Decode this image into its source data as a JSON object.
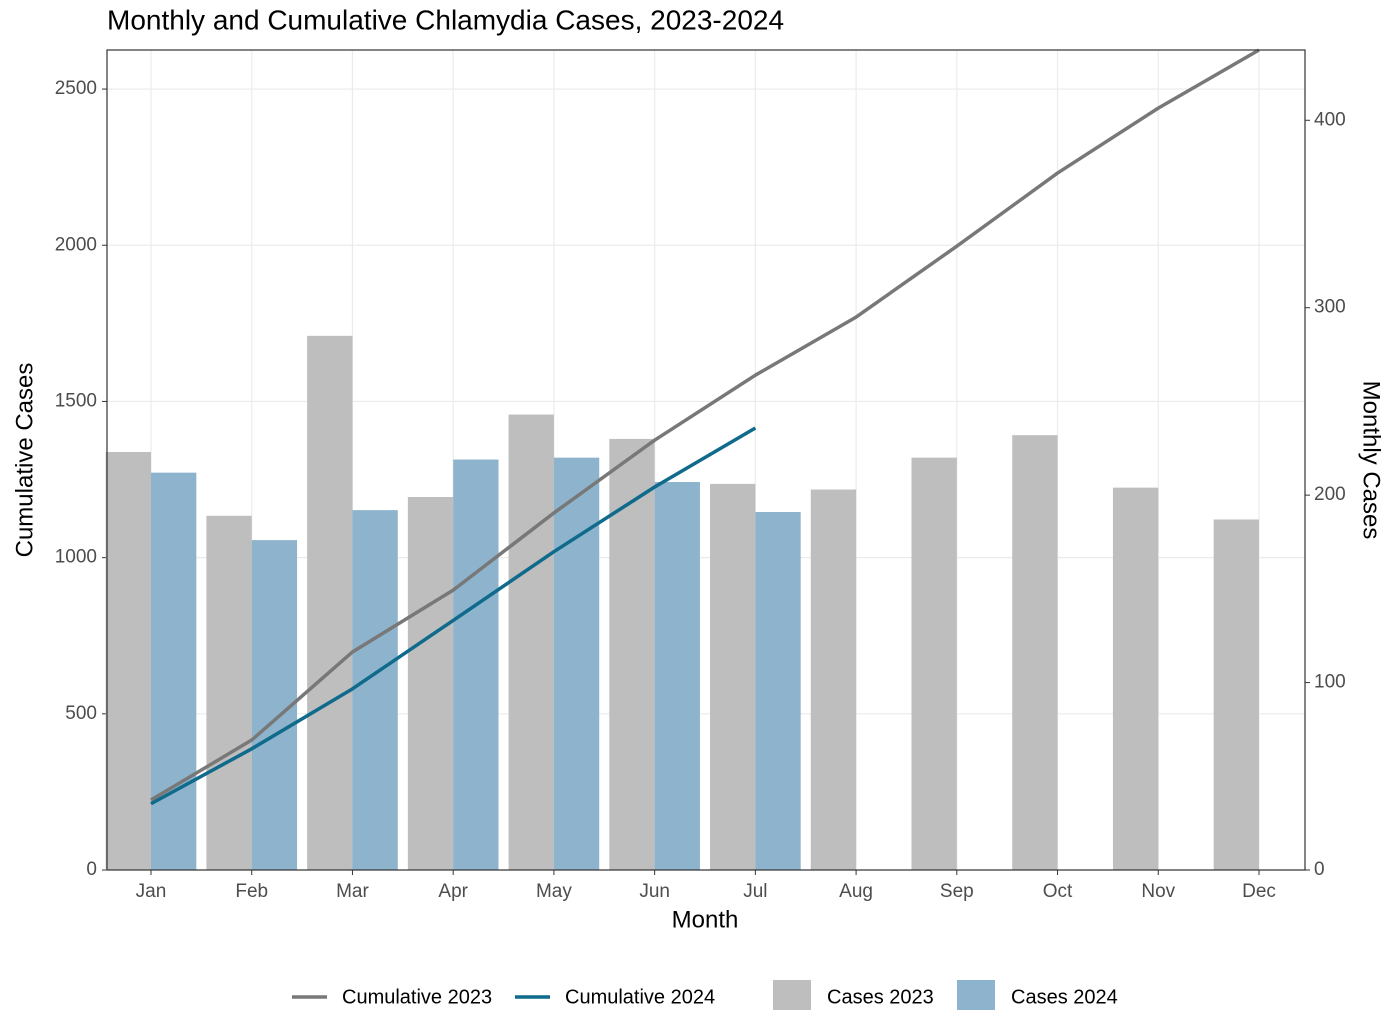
{
  "chart_data": {
    "type": "bar",
    "title": "Monthly and Cumulative Chlamydia Cases, 2023-2024",
    "x_label": "Month",
    "y_label": "Cumulative Cases",
    "y2_label": "Monthly Cases",
    "categories": [
      "Jan",
      "Feb",
      "Mar",
      "Apr",
      "May",
      "Jun",
      "Jul",
      "Aug",
      "Sep",
      "Oct",
      "Nov",
      "Dec"
    ],
    "series": [
      {
        "name": "Cumulative 2023",
        "kind": "line",
        "color": "#787878",
        "values": [
          224,
          416,
          698,
          896,
          1143,
          1376,
          1584,
          1770,
          1997,
          2231,
          2439,
          2625
        ]
      },
      {
        "name": "Cumulative 2024",
        "kind": "line",
        "color": "#0f6a8b",
        "values": [
          212,
          388,
          580,
          799,
          1019,
          1226,
          1415,
          null,
          null,
          null,
          null,
          null
        ]
      },
      {
        "name": "Cases 2023",
        "kind": "bar",
        "axis": "y2",
        "color": "#bebebe",
        "values": [
          223,
          189,
          285,
          199,
          243,
          230,
          206,
          203,
          220,
          232,
          204,
          187
        ]
      },
      {
        "name": "Cases 2024",
        "kind": "bar",
        "axis": "y2",
        "color": "#8db4cc",
        "values": [
          212,
          176,
          192,
          219,
          220,
          207,
          191,
          null,
          null,
          null,
          null,
          null
        ]
      }
    ],
    "ylim": [
      0,
      2625
    ],
    "yticks": [
      0,
      500,
      1000,
      1500,
      2000,
      2500
    ],
    "y2lim": [
      0,
      437.5
    ],
    "y2ticks": [
      0,
      100,
      200,
      300,
      400
    ],
    "grid": true,
    "legend": "bottom"
  }
}
